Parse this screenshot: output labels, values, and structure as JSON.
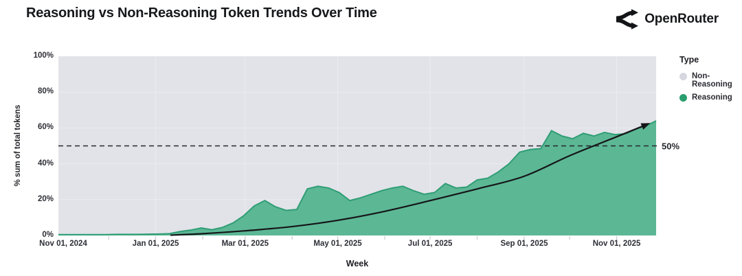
{
  "header": {
    "title": "Reasoning vs Non-Reasoning Token Trends Over Time",
    "brand": "OpenRouter"
  },
  "legend": {
    "title": "Type",
    "items": [
      {
        "label": "Non-Reasoning",
        "color": "#d7d7e1"
      },
      {
        "label": "Reasoning",
        "color": "#2a9d6e"
      }
    ]
  },
  "chart_data": {
    "type": "area",
    "title": "Reasoning vs Non-Reasoning Token Trends Over Time",
    "xlabel": "Week",
    "ylabel": "% sum of total tokens",
    "ylim": [
      0,
      100
    ],
    "x_range": [
      "Nov 01, 2024",
      "Nov 28, 2025"
    ],
    "grid": true,
    "plot_bg": "#e2e2e9",
    "grid_color": "#ebecf2",
    "tick_mark_color": "#c9cbd4",
    "y_ticks": [
      {
        "label": "0%",
        "pct": 0
      },
      {
        "label": "20%",
        "pct": 20
      },
      {
        "label": "40%",
        "pct": 40
      },
      {
        "label": "60%",
        "pct": 60
      },
      {
        "label": "80%",
        "pct": 80
      },
      {
        "label": "100%",
        "pct": 100
      }
    ],
    "x_ticks": [
      {
        "label": "Nov 01, 2024",
        "week": 0
      },
      {
        "label": "Jan 01, 2025",
        "week": 8.71
      },
      {
        "label": "Mar 01, 2025",
        "week": 17.14
      },
      {
        "label": "May 01, 2025",
        "week": 25.86
      },
      {
        "label": "Jul 01, 2025",
        "week": 34.57
      },
      {
        "label": "Sep 01, 2025",
        "week": 43.43
      },
      {
        "label": "Nov 01, 2025",
        "week": 52.14
      }
    ],
    "minor_tick_weeks": [
      4.29,
      8.71,
      13.14,
      17.14,
      21.57,
      25.86,
      30.29,
      34.57,
      39.0,
      43.43,
      47.71,
      52.14
    ],
    "ref_line": {
      "label": "50%",
      "pct": 50,
      "style": "dashed",
      "color": "#26262b"
    },
    "series": [
      {
        "name": "Reasoning",
        "kind": "area",
        "color": "#5cb795",
        "edge_color": "#2f9e74",
        "x_unit": "week_index_from_Nov_01_2024",
        "weekly_pct": [
          0.5,
          0.5,
          0.5,
          0.5,
          0.5,
          0.6,
          0.6,
          0.6,
          0.7,
          0.8,
          1.0,
          2.2,
          3.0,
          4.2,
          3.2,
          4.5,
          7.0,
          11.0,
          16.5,
          19.5,
          16.0,
          14.0,
          14.5,
          26.0,
          27.5,
          26.5,
          24.0,
          19.5,
          21.0,
          23.0,
          25.0,
          26.5,
          27.5,
          25.0,
          23.0,
          24.0,
          29.0,
          26.5,
          27.0,
          31.0,
          32.0,
          35.5,
          40.0,
          46.5,
          48.0,
          48.5,
          58.5,
          55.5,
          54.0,
          57.0,
          55.5,
          57.5,
          56.3,
          56.8,
          59.5,
          61.5,
          64.0
        ]
      },
      {
        "name": "Non-Reasoning",
        "kind": "background-remainder",
        "color": "#e2e2e9",
        "note": "remainder of stack up to 100%"
      }
    ],
    "trend_line": {
      "name": "smoothed trend with arrow",
      "color": "#151518",
      "points_week_pct": [
        [
          10.1,
          0.2
        ],
        [
          13.1,
          1.0
        ],
        [
          17.1,
          2.6
        ],
        [
          21.6,
          5.0
        ],
        [
          25.9,
          8.5
        ],
        [
          30.3,
          13.5
        ],
        [
          34.6,
          19.5
        ],
        [
          39.0,
          26.0
        ],
        [
          43.4,
          33.0
        ],
        [
          47.7,
          44.5
        ],
        [
          52.1,
          55.0
        ],
        [
          55.0,
          62.0
        ]
      ]
    }
  }
}
